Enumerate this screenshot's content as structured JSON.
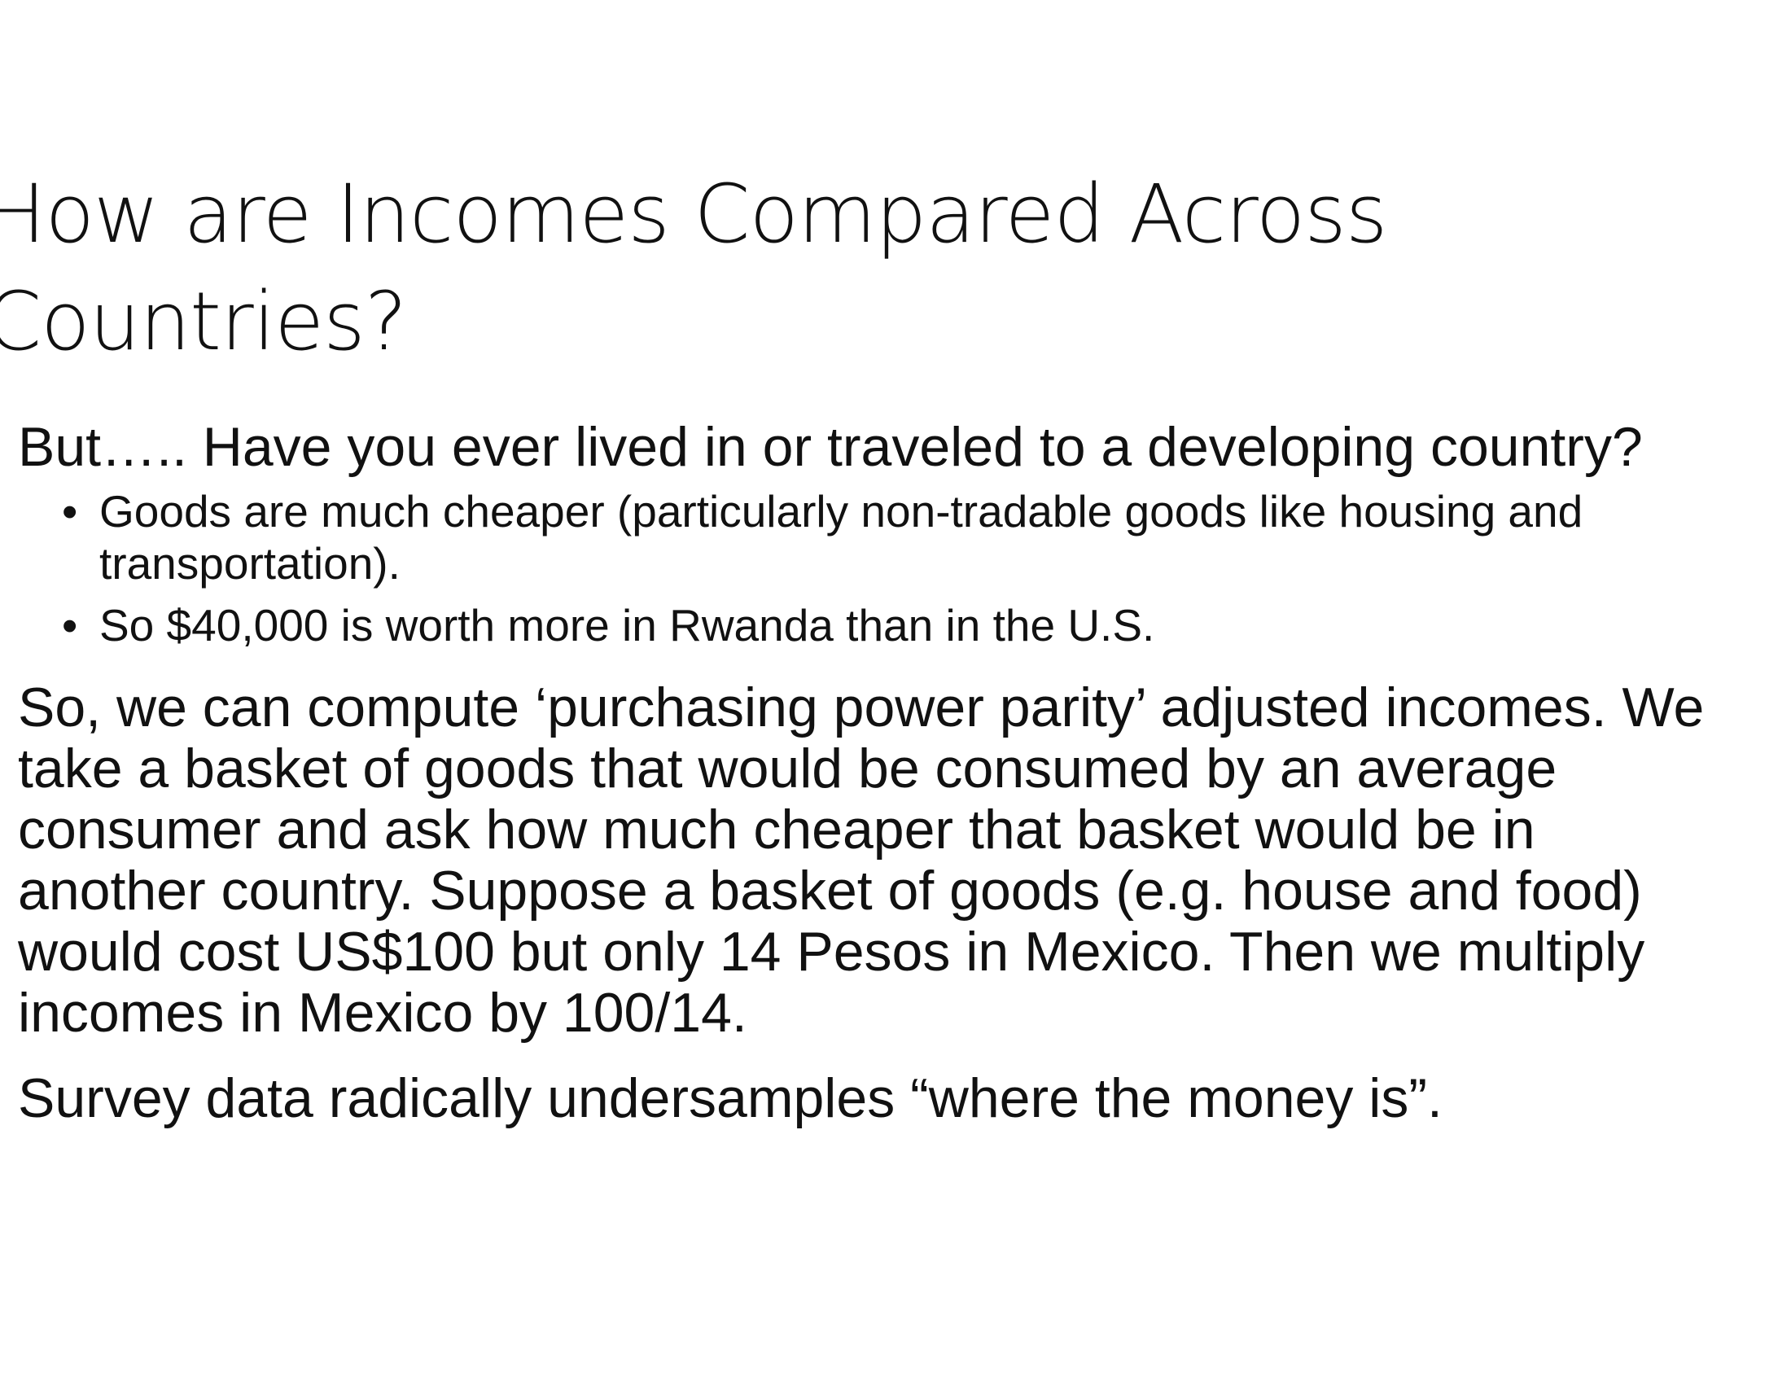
{
  "slide": {
    "title_lines": [
      "How are Incomes Compared Across",
      "Countries?"
    ],
    "paragraph_1": "But….. Have you ever lived in or traveled to a developing country?",
    "bullets": [
      "Goods are much cheaper (particularly non-tradable goods like housing and transportation).",
      "So $40,000 is worth more in Rwanda than in the U.S."
    ],
    "paragraph_2_lines": [
      "So, we can compute ‘purchasing power parity’ adjusted incomes. We",
      "take a basket of goods that would be consumed by an average",
      "consumer and ask how much cheaper that basket would be in",
      "another country. Suppose a basket of goods (e.g. house and food)",
      "would cost US$100 but only 14 Pesos in Mexico. Then we multiply",
      "incomes in Mexico by 100/14."
    ],
    "paragraph_3": "Survey data radically undersamples “where the money is”."
  }
}
